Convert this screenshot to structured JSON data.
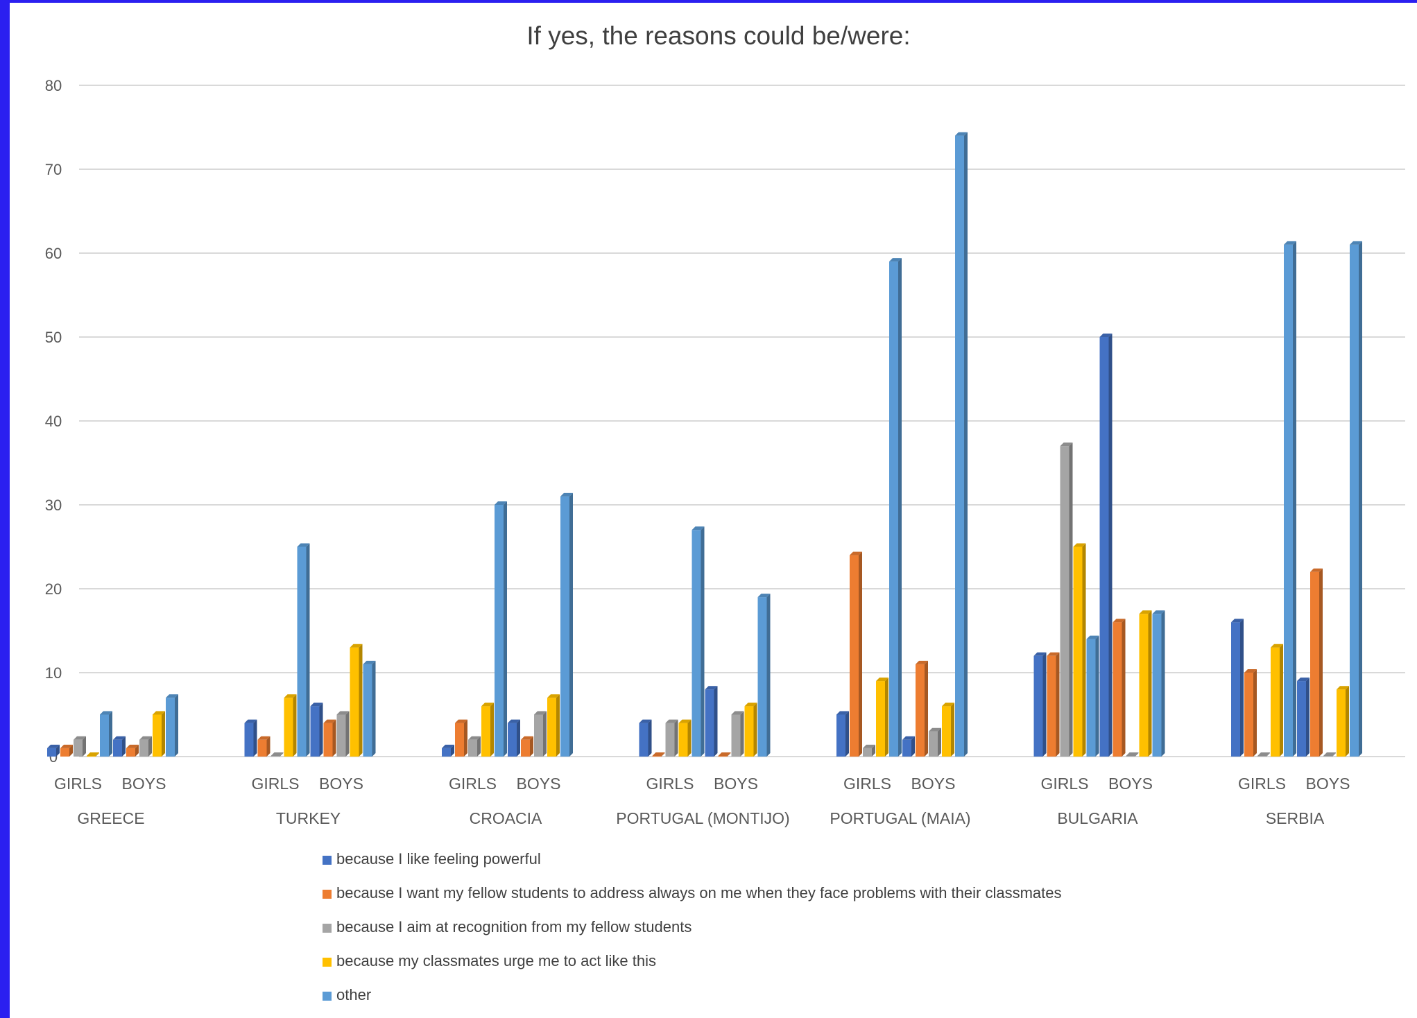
{
  "chart_data": {
    "type": "bar",
    "title": "If yes, the reasons could be/were:",
    "ylim": [
      0,
      80
    ],
    "yticks": [
      0,
      10,
      20,
      30,
      40,
      50,
      60,
      70,
      80
    ],
    "grid": true,
    "legend_position": "bottom",
    "groups": [
      "GREECE",
      "TURKEY",
      "CROACIA",
      "PORTUGAL (MONTIJO)",
      "PORTUGAL (MAIA)",
      "BULGARIA",
      "SERBIA"
    ],
    "subgroups": [
      "GIRLS",
      "BOYS"
    ],
    "categories": [
      "GREECE GIRLS",
      "GREECE BOYS",
      "TURKEY GIRLS",
      "TURKEY BOYS",
      "CROACIA GIRLS",
      "CROACIA BOYS",
      "PORTUGAL (MONTIJO) GIRLS",
      "PORTUGAL (MONTIJO) BOYS",
      "PORTUGAL (MAIA) GIRLS",
      "PORTUGAL (MAIA) BOYS",
      "BULGARIA GIRLS",
      "BULGARIA BOYS",
      "SERBIA GIRLS",
      "SERBIA BOYS"
    ],
    "series": [
      {
        "name": "because I like feeling powerful",
        "color": "#4472c4",
        "values": [
          1,
          2,
          4,
          6,
          1,
          4,
          4,
          8,
          5,
          2,
          12,
          50,
          16,
          9
        ]
      },
      {
        "name": "because I want my fellow students to address always on me when they face problems with their classmates",
        "color": "#ed7d31",
        "values": [
          1,
          1,
          2,
          4,
          4,
          2,
          0,
          0,
          24,
          11,
          12,
          16,
          10,
          22
        ]
      },
      {
        "name": "because I aim at recognition from my fellow students",
        "color": "#a5a5a5",
        "values": [
          2,
          2,
          0,
          5,
          2,
          5,
          4,
          5,
          1,
          3,
          37,
          0,
          0,
          0
        ]
      },
      {
        "name": "because my classmates urge me to act like this",
        "color": "#ffc000",
        "values": [
          0,
          5,
          7,
          13,
          6,
          7,
          4,
          6,
          9,
          6,
          25,
          17,
          13,
          8
        ]
      },
      {
        "name": "other",
        "color": "#5b9bd5",
        "values": [
          5,
          7,
          25,
          11,
          30,
          31,
          27,
          19,
          59,
          74,
          14,
          17,
          61,
          61
        ]
      }
    ]
  }
}
